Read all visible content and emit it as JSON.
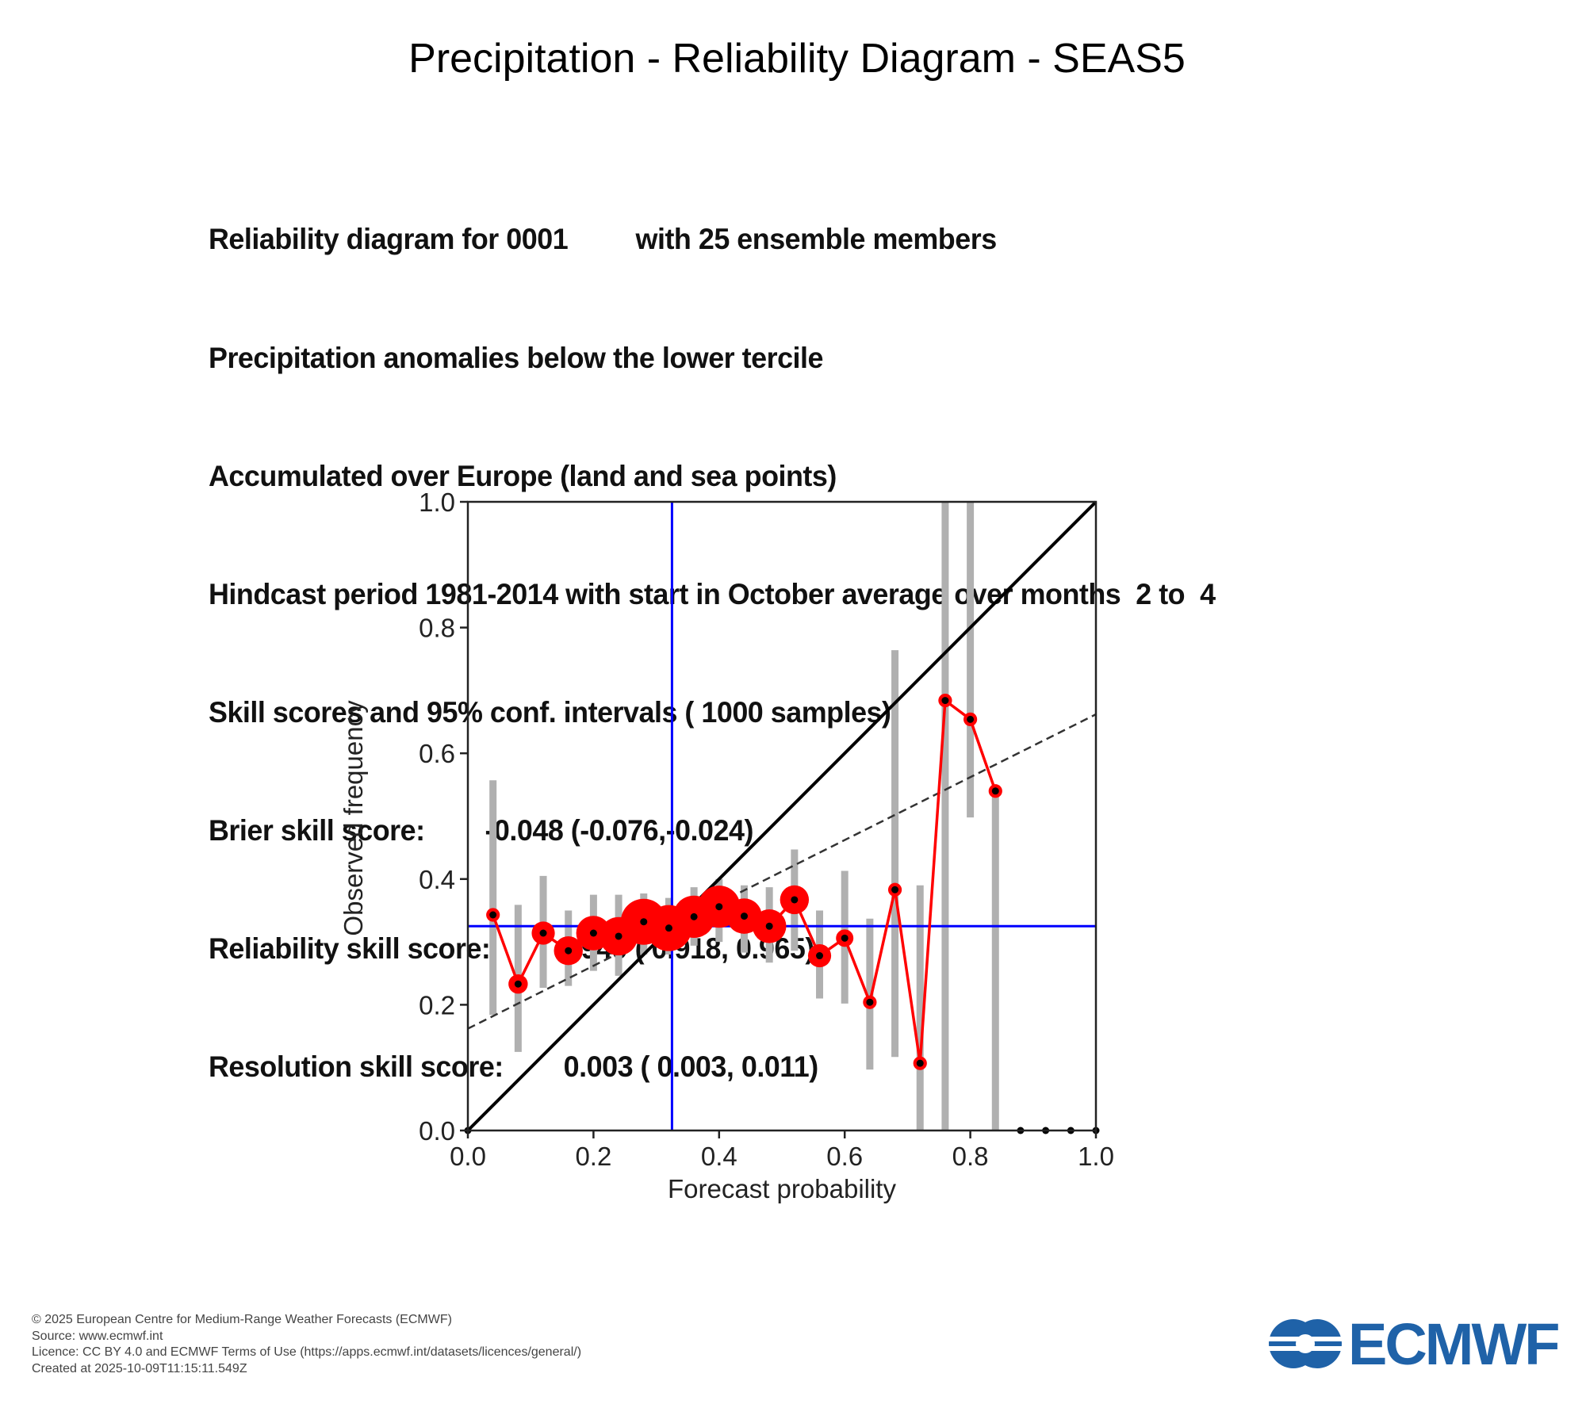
{
  "title": "Precipitation - Reliability Diagram - SEAS5",
  "info_lines": [
    "Reliability diagram for 0001         with 25 ensemble members",
    "Precipitation anomalies below the lower tercile",
    "Accumulated over Europe (land and sea points)",
    "Hindcast period 1981-2014 with start in October average over months  2 to  4",
    "Skill scores and 95% conf. intervals ( 1000 samples)",
    "Brier skill score:        -0.048 (-0.076,-0.024)",
    "Reliability skill score:         0.949 ( 0.918, 0.965)",
    "Resolution skill score:        0.003 ( 0.003, 0.011)"
  ],
  "chart_data": {
    "type": "scatter",
    "title": "Precipitation - Reliability Diagram - SEAS5",
    "xlabel": "Forecast probability",
    "ylabel": "Observed frequency",
    "xlim": [
      0,
      1
    ],
    "ylim": [
      0,
      1
    ],
    "xticks": [
      "0.0",
      "0.2",
      "0.4",
      "0.6",
      "0.8",
      "1.0"
    ],
    "yticks": [
      "0.0",
      "0.2",
      "0.4",
      "0.6",
      "0.8",
      "1.0"
    ],
    "climatology": 0.325,
    "regression_line": {
      "y_at_0": 0.162,
      "y_at_1": 0.662
    },
    "x": [
      0.0,
      0.04,
      0.08,
      0.12,
      0.16,
      0.2,
      0.24,
      0.28,
      0.32,
      0.36,
      0.4,
      0.44,
      0.48,
      0.52,
      0.56,
      0.6,
      0.64,
      0.68,
      0.72,
      0.76,
      0.8,
      0.84,
      0.88,
      0.92,
      0.96,
      1.0
    ],
    "observed": [
      0.0,
      0.343,
      0.233,
      0.314,
      0.286,
      0.314,
      0.309,
      0.332,
      0.322,
      0.34,
      0.356,
      0.341,
      0.325,
      0.367,
      0.278,
      0.306,
      0.204,
      0.383,
      0.107,
      0.684,
      0.654,
      0.54,
      0.0,
      0.0,
      0.0,
      0.0
    ],
    "ci_low": [
      null,
      0.184,
      0.125,
      0.227,
      0.23,
      0.254,
      0.246,
      0.28,
      0.28,
      0.294,
      0.3,
      0.283,
      0.267,
      0.286,
      0.21,
      0.202,
      0.097,
      0.117,
      0.0,
      0.0,
      0.498,
      0.0,
      null,
      null,
      null,
      null
    ],
    "ci_high": [
      null,
      0.557,
      0.359,
      0.405,
      0.35,
      0.375,
      0.375,
      0.377,
      0.37,
      0.387,
      0.4,
      0.39,
      0.387,
      0.447,
      0.35,
      0.413,
      0.337,
      0.764,
      0.39,
      1.0,
      1.0,
      0.54,
      null,
      null,
      null,
      null
    ],
    "relative_sample_size": [
      0,
      0.15,
      0.3,
      0.4,
      0.55,
      0.7,
      0.8,
      1.0,
      1.0,
      0.9,
      0.9,
      0.72,
      0.68,
      0.55,
      0.4,
      0.25,
      0.15,
      0.15,
      0.15,
      0.15,
      0.15,
      0.15,
      0,
      0,
      0,
      0
    ],
    "colors": {
      "reliability": "#ff0000",
      "climatology": "#0000ff",
      "ci": "#b0b0b0",
      "diagonal": "#000000"
    }
  },
  "footer": [
    "© 2025 European Centre for Medium-Range Weather Forecasts (ECMWF)",
    "Source: www.ecmwf.int",
    "Licence: CC BY 4.0 and ECMWF Terms of Use (https://apps.ecmwf.int/datasets/licences/general/)",
    "Created at 2025-10-09T11:15:11.549Z"
  ],
  "logo": {
    "text": "ECMWF",
    "color": "#1f62a8"
  }
}
